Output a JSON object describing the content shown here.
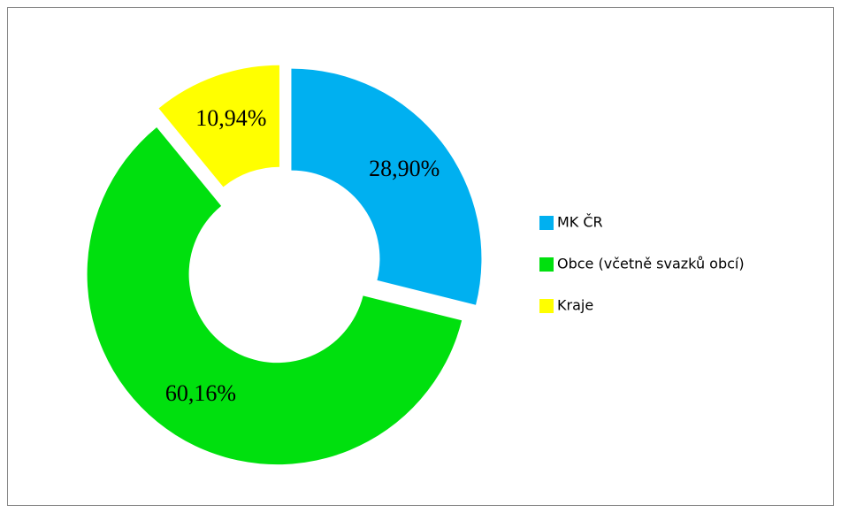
{
  "chart_data": {
    "type": "donut",
    "categories": [
      "MK ČR",
      "Obce (včetně svazků obcí)",
      "Kraje"
    ],
    "values": [
      28.9,
      60.16,
      10.94
    ],
    "value_labels": [
      "28,90%",
      "60,16%",
      "10,94%"
    ],
    "colors": [
      "#00b0f0",
      "#00e00e",
      "#ffff00"
    ],
    "legend": "right"
  }
}
